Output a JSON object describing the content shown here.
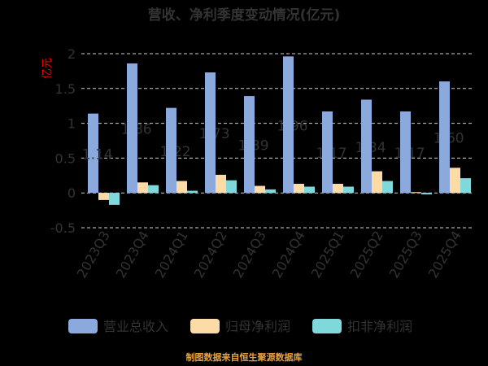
{
  "chart_data": {
    "type": "bar",
    "title": "营收、净利季度变动情况(亿元)",
    "ylabel": "亿元",
    "ylim": [
      -0.5,
      2
    ],
    "yticks": [
      "2",
      "1.5",
      "1",
      "0.5",
      "0",
      "-0.5"
    ],
    "grid": true,
    "legend_position": "bottom",
    "categories": [
      "2023Q3",
      "2023Q4",
      "2024Q1",
      "2024Q2",
      "2024Q3",
      "2024Q4",
      "2025Q1",
      "2025Q2",
      "2025Q3",
      "2025Q4"
    ],
    "series": [
      {
        "name": "营业总收入",
        "color": "#8ba9dc",
        "values": [
          1.14,
          1.86,
          1.22,
          1.73,
          1.39,
          1.96,
          1.17,
          1.34,
          1.17,
          1.6
        ]
      },
      {
        "name": "归母净利润",
        "color": "#fddba6",
        "values": [
          -0.1,
          0.15,
          0.17,
          0.26,
          0.1,
          0.13,
          0.13,
          0.31,
          0.01,
          0.36
        ]
      },
      {
        "name": "扣非净利润",
        "color": "#7fd8d9",
        "values": [
          -0.17,
          0.11,
          0.03,
          0.18,
          0.05,
          0.09,
          0.09,
          0.17,
          -0.02,
          0.21
        ]
      }
    ],
    "data_labels": [
      "1.14",
      "1.86",
      "1.22",
      "1.73",
      "1.39",
      "1.96",
      "1.17",
      "1.34",
      "1.17",
      "1.60"
    ]
  },
  "source_text": "制图数据来自恒生聚源数据库"
}
